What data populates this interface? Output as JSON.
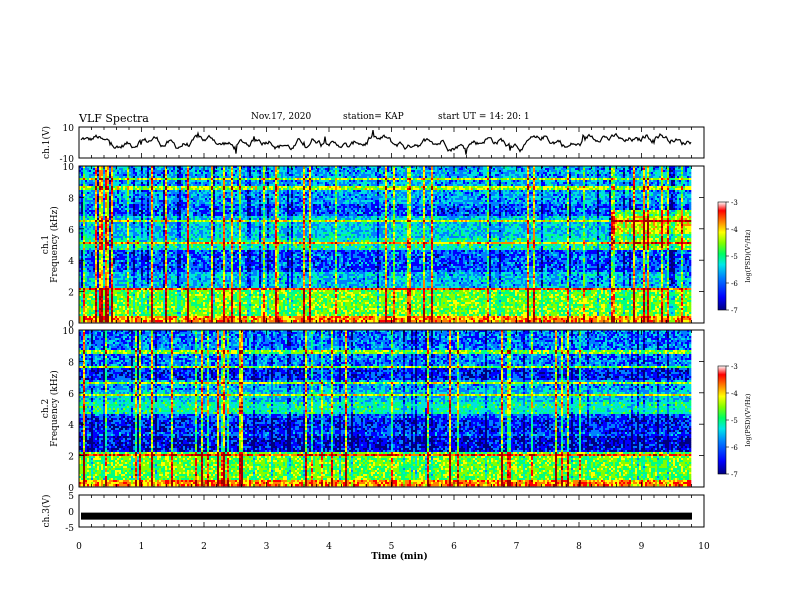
{
  "header": {
    "title": "VLF Spectra",
    "date": "Nov.17, 2020",
    "station": "station= KAP",
    "start_ut": "start  UT =   14: 20: 1"
  },
  "chart_data": [
    {
      "type": "line",
      "panel": "ch1-waveform",
      "ylabel": "ch.1(V)",
      "ylim": [
        -10,
        10
      ],
      "yticks": [
        "10",
        "-10"
      ],
      "xlim": [
        0,
        10
      ],
      "color": "#000000"
    },
    {
      "type": "heatmap",
      "panel": "ch1-spectrogram",
      "ylabel": "ch.1 Frequency (kHz)",
      "ylim": [
        0,
        10
      ],
      "yticks": [
        "0",
        "2",
        "4",
        "6",
        "8",
        "10"
      ],
      "xlim": [
        0,
        10
      ],
      "colorbar": {
        "label": "log(PSD)(V²/Hz)",
        "range": [
          -7,
          -3
        ],
        "ticks": [
          "-3",
          "-4",
          "-5",
          "-6",
          "-7"
        ]
      }
    },
    {
      "type": "heatmap",
      "panel": "ch2-spectrogram",
      "ylabel": "ch.2 Frequency (kHz)",
      "ylim": [
        0,
        10
      ],
      "yticks": [
        "0",
        "2",
        "4",
        "6",
        "8",
        "10"
      ],
      "xlim": [
        0,
        10
      ],
      "colorbar": {
        "label": "log(PSD)(V²/Hz)",
        "range": [
          -7,
          -3
        ],
        "ticks": [
          "-3",
          "-4",
          "-5",
          "-6",
          "-7"
        ]
      }
    },
    {
      "type": "line",
      "panel": "ch3-waveform",
      "ylabel": "ch.3(V)",
      "ylim": [
        -5,
        5
      ],
      "yticks": [
        "5",
        "0",
        "-5"
      ],
      "xlim": [
        0,
        10
      ],
      "color": "#000000"
    }
  ],
  "xaxis": {
    "label": "Time  (min)",
    "ticks": [
      "0",
      "1",
      "2",
      "3",
      "4",
      "5",
      "6",
      "7",
      "8",
      "9",
      "10"
    ]
  },
  "colormap": [
    "#00007f",
    "#0000ff",
    "#007fff",
    "#00e0e0",
    "#00ff80",
    "#80ff00",
    "#ffff00",
    "#ff8000",
    "#ff0000",
    "#a00000"
  ]
}
